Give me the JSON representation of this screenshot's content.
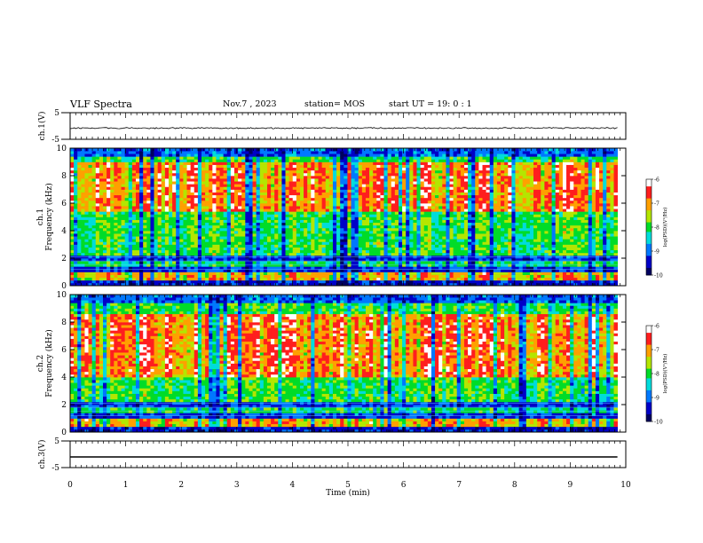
{
  "header": {
    "title": "VLF Spectra",
    "date": "Nov.7  , 2023",
    "station": "station= MOS",
    "start": "start  UT =   19: 0   : 1"
  },
  "chart_data": [
    {
      "type": "line",
      "id": "ch1-waveform",
      "ylabel": "ch.1(V)",
      "ylim": [
        -5,
        5
      ],
      "yticks": [
        "5",
        "-5"
      ],
      "xlim": [
        0,
        10
      ],
      "series": [
        {
          "values": [
            -0.8,
            -0.8
          ]
        }
      ]
    },
    {
      "type": "heatmap",
      "id": "ch1-spectrogram",
      "ylabel": [
        "ch.1",
        "Frequency (kHz)"
      ],
      "ylim": [
        0,
        10
      ],
      "yticks": [
        "0",
        "2",
        "4",
        "6",
        "8",
        "10"
      ],
      "xlim": [
        0,
        9.85
      ],
      "intense_band_khz": [
        5.5,
        9.0
      ],
      "colorbar": {
        "label": "log(PSD)(V²/Hz)",
        "range": [
          -10,
          -6
        ],
        "ticks": [
          "-6",
          "-7",
          "-8",
          "-9",
          "-10"
        ]
      }
    },
    {
      "type": "heatmap",
      "id": "ch2-spectrogram",
      "ylabel": [
        "ch.2",
        "Frequency (kHz)"
      ],
      "ylim": [
        0,
        10
      ],
      "yticks": [
        "0",
        "2",
        "4",
        "6",
        "8",
        "10"
      ],
      "xlim": [
        0,
        9.85
      ],
      "intense_band_khz": [
        4.0,
        8.5
      ],
      "colorbar": {
        "label": "log(PSD)(V²/Hz)",
        "range": [
          -10,
          -6
        ],
        "ticks": [
          "-6",
          "-7",
          "-8",
          "-9",
          "-10"
        ]
      }
    },
    {
      "type": "line",
      "id": "ch3-waveform",
      "ylabel": "ch.3(V)",
      "ylim": [
        -5,
        5
      ],
      "yticks": [
        "5",
        "-5"
      ],
      "xlim": [
        0,
        10
      ],
      "series": [
        {
          "values": [
            -1.0,
            -1.0
          ]
        }
      ]
    }
  ],
  "xaxis": {
    "label": "Time (min)",
    "range": [
      0,
      10
    ],
    "ticks": [
      "0",
      "1",
      "2",
      "3",
      "4",
      "5",
      "6",
      "7",
      "8",
      "9",
      "10"
    ]
  },
  "colormap": [
    "#000060",
    "#0000c8",
    "#0078ff",
    "#00dcdc",
    "#00dc28",
    "#b4e600",
    "#ffa000",
    "#ff1e1e",
    "#ffffff"
  ]
}
